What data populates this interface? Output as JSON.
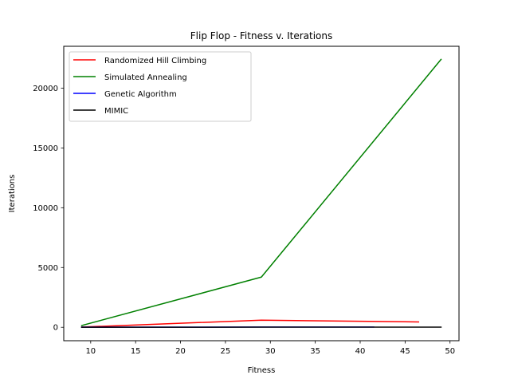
{
  "chart_data": {
    "type": "line",
    "title": "Flip Flop - Fitness v. Iterations",
    "xlabel": "Fitness",
    "ylabel": "Iterations",
    "xlim": [
      7.0,
      51.0
    ],
    "ylim": [
      -1120,
      23500
    ],
    "xticks": [
      10,
      15,
      20,
      25,
      30,
      35,
      40,
      45,
      50
    ],
    "yticks": [
      0,
      5000,
      10000,
      15000,
      20000
    ],
    "grid": false,
    "legend_position": "top-left",
    "series": [
      {
        "name": "Randomized Hill Climbing",
        "color": "#ff0000",
        "x": [
          9,
          29,
          46.5
        ],
        "y": [
          20,
          600,
          450
        ]
      },
      {
        "name": "Simulated Annealing",
        "color": "#008000",
        "x": [
          9,
          29,
          49
        ],
        "y": [
          150,
          4200,
          22400
        ]
      },
      {
        "name": "Genetic Algorithm",
        "color": "#0000ff",
        "x": [
          9,
          29,
          41.5
        ],
        "y": [
          10,
          20,
          25
        ]
      },
      {
        "name": "MIMIC",
        "color": "#000000",
        "x": [
          9,
          29,
          49
        ],
        "y": [
          5,
          10,
          15
        ]
      }
    ]
  }
}
